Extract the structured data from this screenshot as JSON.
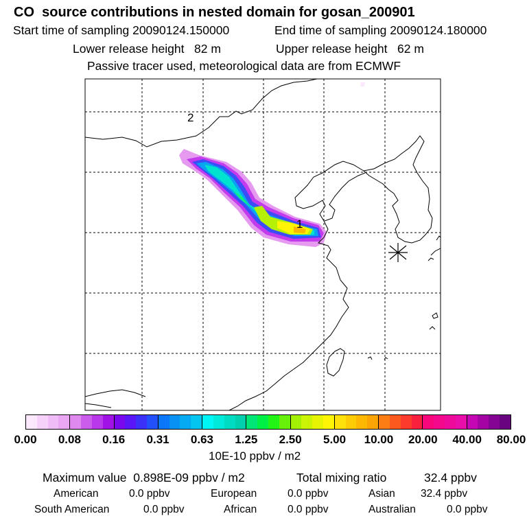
{
  "header": {
    "title": "CO  source contributions in nested domain for gosan_200901",
    "start_label": "Start time of sampling 20090124.150000",
    "end_label": "End time of sampling 20090124.180000",
    "lower_height": "Lower release height   82 m",
    "upper_height": "Upper release height   62 m",
    "tracer_note": "Passive tracer used, meteorological data are from ECMWF"
  },
  "map": {
    "markers": [
      {
        "label": "2"
      },
      {
        "label": "1"
      }
    ],
    "receptor_symbol": "receptor-star"
  },
  "colorbar": {
    "labels": [
      "0.00",
      "0.08",
      "0.16",
      "0.31",
      "0.63",
      "1.25",
      "2.50",
      "5.00",
      "10.00",
      "20.00",
      "40.00",
      "80.00"
    ],
    "segments": [
      [
        "#fbe8fd",
        "#f6d2fb",
        "#f0bcf7",
        "#eaa6f2"
      ],
      [
        "#df88ee",
        "#cc5cec",
        "#b838ea",
        "#a012e6"
      ],
      [
        "#7a08ee",
        "#5a16f6",
        "#3a30f8",
        "#2250fa"
      ],
      [
        "#0a76f8",
        "#0892f4",
        "#06aaf2",
        "#04c4f0"
      ],
      [
        "#00f6f6",
        "#00eadc",
        "#00dcc4",
        "#00cfad"
      ],
      [
        "#00e676",
        "#00f046",
        "#22f416",
        "#66f00a"
      ],
      [
        "#a4f004",
        "#caf404",
        "#e6f404",
        "#fef404"
      ],
      [
        "#fee00a",
        "#fecc06",
        "#fdb804",
        "#fca404"
      ],
      [
        "#fb7c12",
        "#fb5a1e",
        "#fb3a2c",
        "#f8203c"
      ],
      [
        "#f8067c",
        "#f4088c",
        "#ee0a9a",
        "#e80ca8"
      ],
      [
        "#c406b4",
        "#a404a4",
        "#860494",
        "#680480"
      ]
    ],
    "units": "10E-10 ppbv / m2"
  },
  "summary": {
    "max_label": "Maximum value  0.898E-09 ppbv / m2",
    "total_label": "Total mixing ratio",
    "total_value": "32.4 ppbv",
    "sources": [
      {
        "name": "American",
        "value": "0.0 ppbv"
      },
      {
        "name": "European",
        "value": "0.0 ppbv"
      },
      {
        "name": "Asian",
        "value": "32.4 ppbv"
      },
      {
        "name": "South American",
        "value": "0.0 ppbv"
      },
      {
        "name": "African",
        "value": "0.0 ppbv"
      },
      {
        "name": "Australian",
        "value": "0.0 ppbv"
      }
    ]
  }
}
